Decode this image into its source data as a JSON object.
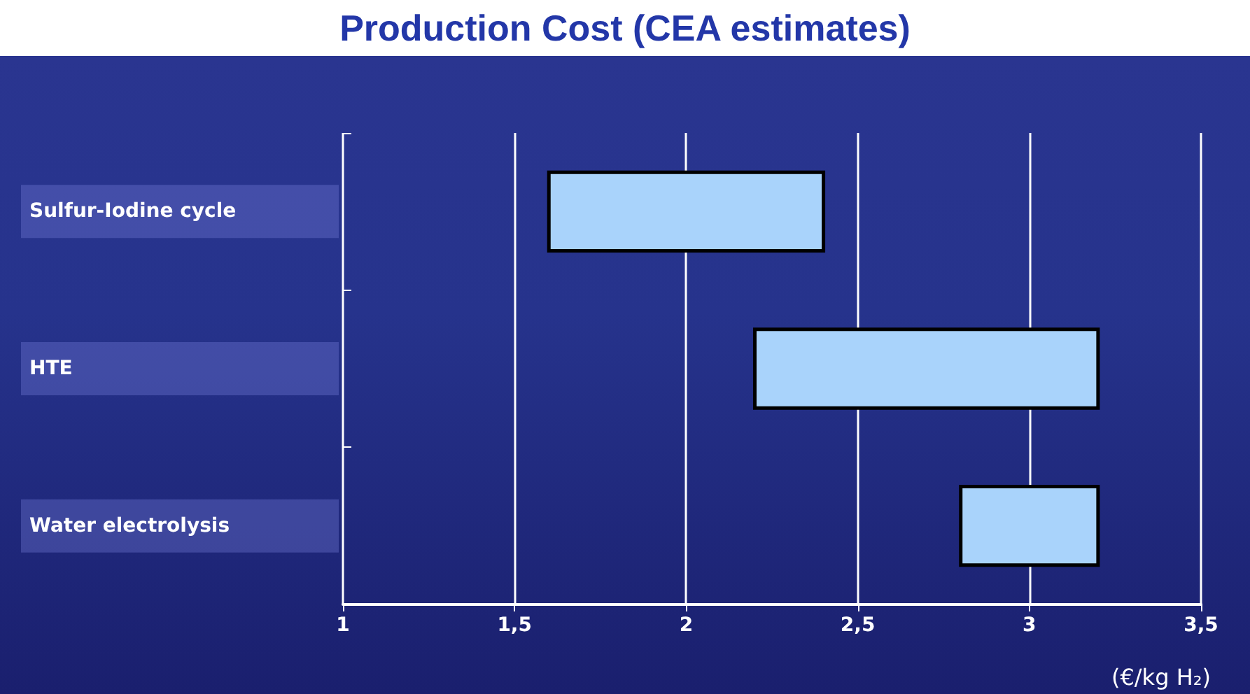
{
  "chart_data": {
    "type": "bar",
    "orientation": "horizontal",
    "title": "Production Cost (CEA estimates)",
    "xlabel": "(€/kg H₂)",
    "categories": [
      "Sulfur-Iodine cycle",
      "HTE",
      "Water electrolysis"
    ],
    "base": [
      1.6,
      2.2,
      2.8
    ],
    "values": [
      0.8,
      1.0,
      0.4
    ],
    "color": "#a9d3fb",
    "xlim": [
      1,
      3.5
    ],
    "xticks": [
      1,
      {
        "value": 1.5,
        "label": "1,5"
      },
      2,
      {
        "value": 2.5,
        "label": "2,5"
      },
      3,
      {
        "value": 3.5,
        "label": "3,5"
      }
    ],
    "grid": "x",
    "legend": false
  }
}
